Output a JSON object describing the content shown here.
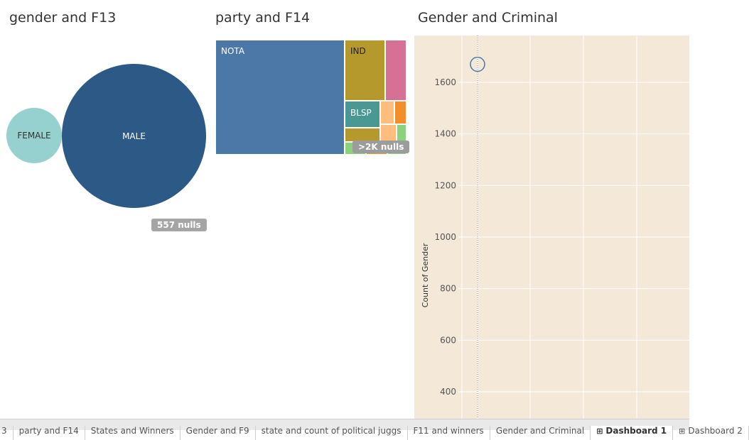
{
  "panels": {
    "bubble_title": "gender and F13",
    "treemap_title": "party and F14",
    "scatter_title": "Gender and Criminal"
  },
  "nulls": {
    "bubble": "557 nulls",
    "treemap": ">2K nulls"
  },
  "colors": {
    "female": "#96d1d0",
    "male": "#2c5985",
    "nota": "#4c78a8",
    "ind": "#b6992c",
    "pink": "#d67195",
    "blsp": "#499894",
    "light_orange": "#ffbe7d",
    "orange": "#f28e2b",
    "light_green": "#8cd17d",
    "scatter_bg": "#f4e9d8",
    "point": "#4e79a7"
  },
  "chart_data": [
    {
      "type": "bubble",
      "title": "gender and F13",
      "categories": [
        "FEMALE",
        "MALE"
      ],
      "values": [
        140,
        900
      ],
      "nulls_label": "557 nulls"
    },
    {
      "type": "treemap",
      "title": "party and F14",
      "categories": [
        "NOTA",
        "IND",
        "BLSP"
      ],
      "nulls_label": ">2K nulls"
    },
    {
      "type": "scatter",
      "title": "Gender and Criminal",
      "ylabel": "Count of Gender",
      "xlabel": "",
      "ylim": [
        300,
        1720
      ],
      "yticks": [
        400,
        600,
        800,
        1000,
        1200,
        1400,
        1600
      ],
      "points": [
        {
          "y": 1670
        }
      ],
      "grid": true
    }
  ],
  "tabs": [
    {
      "label": "3",
      "active": false,
      "icon": ""
    },
    {
      "label": "party and F14",
      "active": false,
      "icon": ""
    },
    {
      "label": "States and Winners",
      "active": false,
      "icon": ""
    },
    {
      "label": "Gender and F9",
      "active": false,
      "icon": ""
    },
    {
      "label": "state and count of political juggs",
      "active": false,
      "icon": ""
    },
    {
      "label": "F11 and winners",
      "active": false,
      "icon": ""
    },
    {
      "label": "Gender and Criminal",
      "active": false,
      "icon": ""
    },
    {
      "label": "Dashboard 1",
      "active": true,
      "icon": "grid-icon"
    },
    {
      "label": "Dashboard 2",
      "active": false,
      "icon": "grid-icon"
    }
  ]
}
